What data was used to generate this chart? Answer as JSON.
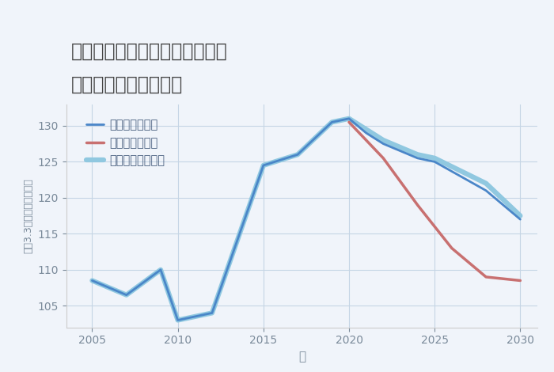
{
  "title_line1": "愛知県名古屋市瑞穂区弥富通の",
  "title_line2": "中古戸建ての価格推移",
  "xlabel": "年",
  "ylabel": "坪（3.3㎡）単価（万円）",
  "ylim": [
    102,
    133
  ],
  "yticks": [
    105,
    110,
    115,
    120,
    125,
    130
  ],
  "background_color": "#f0f4fa",
  "plot_bg_color": "#f0f4fa",
  "grid_color": "#c5d5e5",
  "good_scenario": {
    "x": [
      2005,
      2007,
      2009,
      2010,
      2012,
      2015,
      2017,
      2019,
      2020,
      2021,
      2022,
      2024,
      2025,
      2028,
      2030
    ],
    "y": [
      108.5,
      106.5,
      110.0,
      103.0,
      104.0,
      124.5,
      126.0,
      130.5,
      131.0,
      129.0,
      127.5,
      125.5,
      125.0,
      121.0,
      117.0
    ],
    "color": "#4a86c8",
    "label": "グッドシナリオ",
    "linewidth": 2.0
  },
  "bad_scenario": {
    "x": [
      2020,
      2022,
      2024,
      2026,
      2028,
      2030
    ],
    "y": [
      130.5,
      125.5,
      119.0,
      113.0,
      109.0,
      108.5
    ],
    "color": "#c87070",
    "label": "バッドシナリオ",
    "linewidth": 2.5
  },
  "normal_scenario": {
    "x": [
      2005,
      2007,
      2009,
      2010,
      2012,
      2015,
      2017,
      2019,
      2020,
      2021,
      2022,
      2024,
      2025,
      2028,
      2030
    ],
    "y": [
      108.5,
      106.5,
      110.0,
      103.0,
      104.0,
      124.5,
      126.0,
      130.5,
      131.0,
      129.5,
      128.0,
      126.0,
      125.5,
      122.0,
      117.5
    ],
    "color": "#90c8e0",
    "label": "ノーマルシナリオ",
    "linewidth": 4.5
  },
  "xticks": [
    2005,
    2010,
    2015,
    2020,
    2025,
    2030
  ],
  "title_color": "#444444",
  "axis_color": "#7a8a9a",
  "tick_color": "#7a8a9a",
  "legend_text_color": "#4a6080",
  "title_fontsize": 17,
  "legend_fontsize": 10.5
}
